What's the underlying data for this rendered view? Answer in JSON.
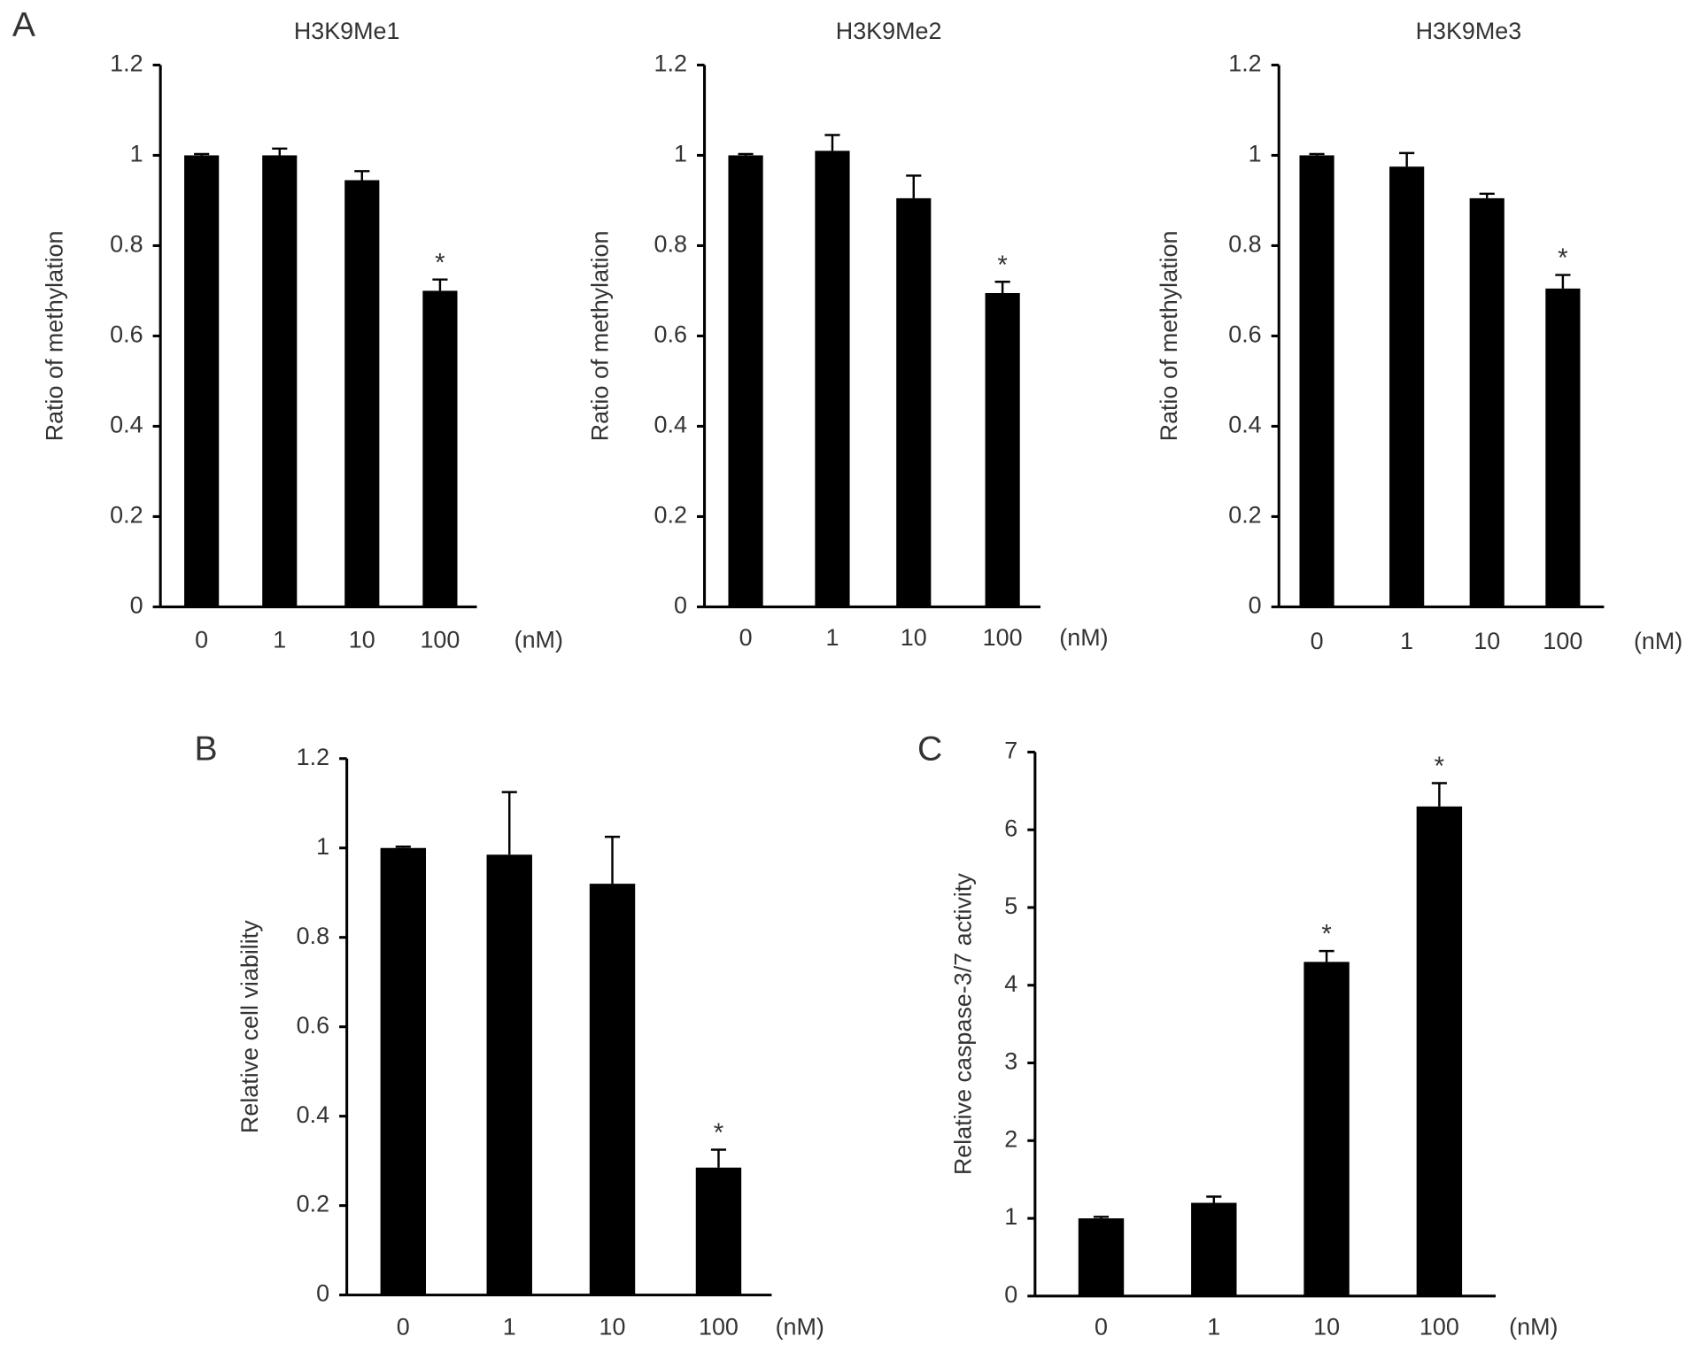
{
  "chart_data": [
    {
      "type": "bar",
      "panel": "A",
      "title": "H3K9Me1",
      "ylabel": "Ratio of methylation",
      "x_unit": "(nM)",
      "categories": [
        "0",
        "1",
        "10",
        "100"
      ],
      "values": [
        1.0,
        1.0,
        0.945,
        0.7
      ],
      "errors": [
        0.003,
        0.015,
        0.02,
        0.025
      ],
      "significance": [
        null,
        null,
        null,
        "*"
      ],
      "color": "#000000",
      "ylim": [
        0,
        1.2
      ],
      "yticks": [
        0,
        0.2,
        0.4,
        0.6,
        0.8,
        1,
        1.2
      ]
    },
    {
      "type": "bar",
      "title": "H3K9Me2",
      "ylabel": "Ratio of methylation",
      "x_unit": "(nM)",
      "categories": [
        "0",
        "1",
        "10",
        "100"
      ],
      "values": [
        1.0,
        1.01,
        0.905,
        0.695
      ],
      "errors": [
        0.003,
        0.035,
        0.05,
        0.025
      ],
      "significance": [
        null,
        null,
        null,
        "*"
      ],
      "color": "#000000",
      "ylim": [
        0,
        1.2
      ],
      "yticks": [
        0,
        0.2,
        0.4,
        0.6,
        0.8,
        1,
        1.2
      ]
    },
    {
      "type": "bar",
      "title": "H3K9Me3",
      "ylabel": "Ratio of methylation",
      "x_unit": "(nM)",
      "categories": [
        "0",
        "1",
        "10",
        "100"
      ],
      "values": [
        1.0,
        0.975,
        0.905,
        0.705
      ],
      "errors": [
        0.003,
        0.03,
        0.01,
        0.03
      ],
      "significance": [
        null,
        null,
        null,
        "*"
      ],
      "color": "#000000",
      "ylim": [
        0,
        1.2
      ],
      "yticks": [
        0,
        0.2,
        0.4,
        0.6,
        0.8,
        1,
        1.2
      ]
    },
    {
      "type": "bar",
      "panel": "B",
      "ylabel": "Relative cell viability",
      "x_unit": "(nM)",
      "categories": [
        "0",
        "1",
        "10",
        "100"
      ],
      "values": [
        1.0,
        0.985,
        0.92,
        0.285
      ],
      "errors": [
        0.003,
        0.14,
        0.105,
        0.04
      ],
      "significance": [
        null,
        null,
        null,
        "*"
      ],
      "color": "#000000",
      "ylim": [
        0,
        1.2
      ],
      "yticks": [
        0,
        0.2,
        0.4,
        0.6,
        0.8,
        1,
        1.2
      ]
    },
    {
      "type": "bar",
      "panel": "C",
      "ylabel": "Relative caspase-3/7 activity",
      "x_unit": "(nM)",
      "categories": [
        "0",
        "1",
        "10",
        "100"
      ],
      "values": [
        1.0,
        1.2,
        4.3,
        6.3
      ],
      "errors": [
        0.02,
        0.08,
        0.14,
        0.3
      ],
      "significance": [
        null,
        null,
        "*",
        "*"
      ],
      "color": "#000000",
      "ylim": [
        0,
        7
      ],
      "yticks": [
        0,
        1,
        2,
        3,
        4,
        5,
        6,
        7
      ]
    }
  ]
}
